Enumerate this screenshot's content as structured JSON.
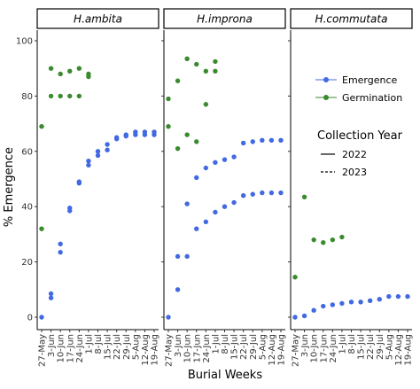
{
  "chart_data": {
    "type": "scatter",
    "xlabel": "Burial Weeks",
    "ylabel": "% Emergence",
    "ylim": [
      0,
      100
    ],
    "y_ticks": [
      0,
      20,
      40,
      60,
      80,
      100
    ],
    "categories": [
      "27-May",
      "3-Jun",
      "10-Jun",
      "17-Jun",
      "24-Jun",
      "1-Jul",
      "8-Jul",
      "15-Jul",
      "22-Jul",
      "29-Jul",
      "5-Aug",
      "12-Aug",
      "19-Aug"
    ],
    "grid": false,
    "legend": {
      "placement": "right",
      "series_entries": [
        "Emergence",
        "Germination"
      ],
      "linetype_title": "Collection Year",
      "linetype_entries": [
        "2022",
        "2023"
      ]
    },
    "colors": {
      "Emergence": "#4169E1",
      "Germination": "#3A8A2E"
    },
    "panels": [
      {
        "title": "H.ambita",
        "series": [
          {
            "name": "Emergence",
            "points": [
              {
                "x": "27-May",
                "y": 0
              },
              {
                "x": "3-Jun",
                "y": 7
              },
              {
                "x": "3-Jun",
                "y": 8.5
              },
              {
                "x": "10-Jun",
                "y": 23.5
              },
              {
                "x": "10-Jun",
                "y": 26.5
              },
              {
                "x": "17-Jun",
                "y": 38.5
              },
              {
                "x": "17-Jun",
                "y": 39.5
              },
              {
                "x": "24-Jun",
                "y": 48.5
              },
              {
                "x": "24-Jun",
                "y": 49
              },
              {
                "x": "1-Jul",
                "y": 55
              },
              {
                "x": "1-Jul",
                "y": 56.5
              },
              {
                "x": "8-Jul",
                "y": 58.5
              },
              {
                "x": "8-Jul",
                "y": 60
              },
              {
                "x": "15-Jul",
                "y": 60.5
              },
              {
                "x": "15-Jul",
                "y": 62.5
              },
              {
                "x": "22-Jul",
                "y": 64.5
              },
              {
                "x": "22-Jul",
                "y": 65
              },
              {
                "x": "29-Jul",
                "y": 65.5
              },
              {
                "x": "29-Jul",
                "y": 66
              },
              {
                "x": "5-Aug",
                "y": 66
              },
              {
                "x": "5-Aug",
                "y": 67
              },
              {
                "x": "12-Aug",
                "y": 66
              },
              {
                "x": "12-Aug",
                "y": 67
              },
              {
                "x": "19-Aug",
                "y": 66
              },
              {
                "x": "19-Aug",
                "y": 67
              }
            ]
          },
          {
            "name": "Germination",
            "points": [
              {
                "x": "27-May",
                "y": 32
              },
              {
                "x": "27-May",
                "y": 69
              },
              {
                "x": "3-Jun",
                "y": 80
              },
              {
                "x": "3-Jun",
                "y": 90
              },
              {
                "x": "10-Jun",
                "y": 80
              },
              {
                "x": "10-Jun",
                "y": 88
              },
              {
                "x": "17-Jun",
                "y": 80
              },
              {
                "x": "17-Jun",
                "y": 89
              },
              {
                "x": "24-Jun",
                "y": 80
              },
              {
                "x": "24-Jun",
                "y": 90
              },
              {
                "x": "1-Jul",
                "y": 87
              },
              {
                "x": "1-Jul",
                "y": 88
              }
            ]
          }
        ]
      },
      {
        "title": "H.improna",
        "series": [
          {
            "name": "Emergence",
            "points": [
              {
                "x": "27-May",
                "y": 0
              },
              {
                "x": "3-Jun",
                "y": 10
              },
              {
                "x": "3-Jun",
                "y": 22
              },
              {
                "x": "10-Jun",
                "y": 22
              },
              {
                "x": "10-Jun",
                "y": 41
              },
              {
                "x": "17-Jun",
                "y": 32
              },
              {
                "x": "17-Jun",
                "y": 50.5
              },
              {
                "x": "24-Jun",
                "y": 34.5
              },
              {
                "x": "24-Jun",
                "y": 54
              },
              {
                "x": "1-Jul",
                "y": 38
              },
              {
                "x": "1-Jul",
                "y": 56
              },
              {
                "x": "8-Jul",
                "y": 40
              },
              {
                "x": "8-Jul",
                "y": 57
              },
              {
                "x": "15-Jul",
                "y": 41.5
              },
              {
                "x": "15-Jul",
                "y": 58
              },
              {
                "x": "22-Jul",
                "y": 44
              },
              {
                "x": "22-Jul",
                "y": 63
              },
              {
                "x": "29-Jul",
                "y": 44.5
              },
              {
                "x": "29-Jul",
                "y": 63.5
              },
              {
                "x": "5-Aug",
                "y": 45
              },
              {
                "x": "5-Aug",
                "y": 64
              },
              {
                "x": "12-Aug",
                "y": 45
              },
              {
                "x": "12-Aug",
                "y": 64
              },
              {
                "x": "19-Aug",
                "y": 45
              },
              {
                "x": "19-Aug",
                "y": 64
              }
            ]
          },
          {
            "name": "Germination",
            "points": [
              {
                "x": "27-May",
                "y": 69
              },
              {
                "x": "27-May",
                "y": 79
              },
              {
                "x": "3-Jun",
                "y": 61
              },
              {
                "x": "3-Jun",
                "y": 85.5
              },
              {
                "x": "10-Jun",
                "y": 66
              },
              {
                "x": "10-Jun",
                "y": 93.5
              },
              {
                "x": "17-Jun",
                "y": 63.5
              },
              {
                "x": "17-Jun",
                "y": 91.5
              },
              {
                "x": "24-Jun",
                "y": 77
              },
              {
                "x": "24-Jun",
                "y": 89
              },
              {
                "x": "1-Jul",
                "y": 89
              },
              {
                "x": "1-Jul",
                "y": 92.5
              }
            ]
          }
        ]
      },
      {
        "title": "H.commutata",
        "series": [
          {
            "name": "Emergence",
            "points": [
              {
                "x": "27-May",
                "y": 0
              },
              {
                "x": "3-Jun",
                "y": 0.5
              },
              {
                "x": "10-Jun",
                "y": 2.5
              },
              {
                "x": "17-Jun",
                "y": 4
              },
              {
                "x": "24-Jun",
                "y": 4.5
              },
              {
                "x": "1-Jul",
                "y": 5
              },
              {
                "x": "8-Jul",
                "y": 5.5
              },
              {
                "x": "15-Jul",
                "y": 5.5
              },
              {
                "x": "22-Jul",
                "y": 6
              },
              {
                "x": "29-Jul",
                "y": 6.5
              },
              {
                "x": "5-Aug",
                "y": 7.5
              },
              {
                "x": "12-Aug",
                "y": 7.5
              },
              {
                "x": "19-Aug",
                "y": 7.5
              }
            ]
          },
          {
            "name": "Germination",
            "points": [
              {
                "x": "27-May",
                "y": 14.5
              },
              {
                "x": "3-Jun",
                "y": 43.5
              },
              {
                "x": "10-Jun",
                "y": 28
              },
              {
                "x": "17-Jun",
                "y": 27
              },
              {
                "x": "24-Jun",
                "y": 28
              },
              {
                "x": "1-Jul",
                "y": 29
              }
            ]
          }
        ]
      }
    ]
  }
}
